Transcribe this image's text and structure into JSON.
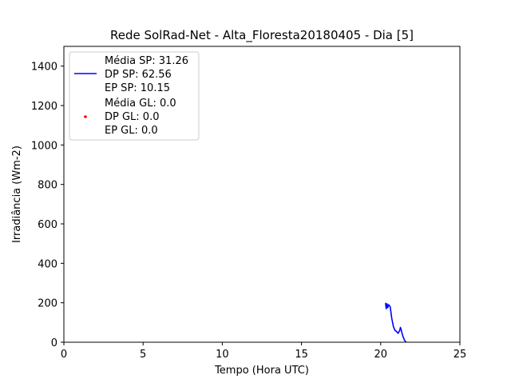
{
  "chart_data": {
    "type": "line",
    "title": "Rede SolRad-Net - Alta_Floresta20180405 - Dia [5]",
    "xlabel": "Tempo (Hora UTC)",
    "ylabel": "Irradiância (Wm-2)",
    "xlim": [
      0,
      25
    ],
    "ylim": [
      0,
      1500
    ],
    "xticks": [
      0,
      5,
      10,
      15,
      20,
      25
    ],
    "xtick_labels": [
      "0",
      "5",
      "10",
      "15",
      "20",
      "25"
    ],
    "yticks": [
      0,
      200,
      400,
      600,
      800,
      1000,
      1200,
      1400
    ],
    "ytick_labels": [
      "0",
      "200",
      "400",
      "600",
      "800",
      "1000",
      "1200",
      "1400"
    ],
    "grid": false,
    "legend_position": "top-left",
    "legend": {
      "sp_lines": [
        "Média SP: 31.26",
        "DP SP: 62.56",
        "EP SP: 10.15"
      ],
      "gl_lines": [
        "Média GL: 0.0",
        "DP GL: 0.0",
        "EP GL: 0.0"
      ]
    },
    "series": [
      {
        "color": "#0000ff",
        "style": "line",
        "x": [
          20.3,
          20.35,
          20.4,
          20.45,
          20.5,
          20.55,
          20.6,
          20.65,
          20.7,
          20.75,
          20.8,
          20.9,
          21.0,
          21.1,
          21.2,
          21.25,
          21.3,
          21.35,
          21.4,
          21.45,
          21.5,
          21.55,
          21.6
        ],
        "y": [
          200,
          170,
          195,
          175,
          190,
          185,
          180,
          150,
          120,
          100,
          80,
          60,
          55,
          45,
          60,
          75,
          60,
          45,
          30,
          20,
          10,
          5,
          0
        ]
      },
      {
        "color": "#ff0000",
        "style": "points",
        "x": [],
        "y": []
      }
    ]
  }
}
